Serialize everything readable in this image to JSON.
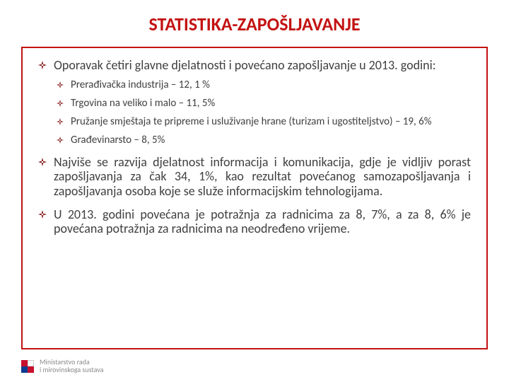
{
  "title": {
    "text": "STATISTIKA-ZAPOŠLJAVANJE",
    "color": "#c31212",
    "fontsize": 26
  },
  "border_color": "#c31212",
  "text_color_main": "#3f3f3f",
  "text_color_sub": "#3f3f3f",
  "bullet_color": "#7a0000",
  "fontsize_main": 18,
  "fontsize_sub": 15,
  "items": [
    {
      "text": "Oporavak četiri glavne djelatnosti i povećano zapošljavanje u 2013. godini:",
      "justify": false,
      "sub": [
        {
          "text": " Prerađivačka industrija – 12, 1 %"
        },
        {
          "text": "Trgovina na veliko i malo – 11, 5%"
        },
        {
          "text": "Pružanje smještaja te pripreme i usluživanje hrane (turizam i ugostiteljstvo) – 19, 6%",
          "justify": true
        },
        {
          "text": " Građevinarsto – 8, 5%"
        }
      ]
    },
    {
      "text": "Najviše se razvija djelatnost informacija i komunikacija, gdje je vidljiv porast zapošljavanja za čak 34, 1%, kao rezultat povećanog samozapošljavanja i zapošljavanja osoba koje se služe informacijskim tehnologijama.",
      "justify": true
    },
    {
      "text": "U 2013. godini povećana je potražnja za radnicima za 8, 7%, a za 8, 6% je povećana potražnja za radnicima na neodređeno vrijeme.",
      "justify": true
    }
  ],
  "footer": {
    "line1": "Ministarstvo rada",
    "line2": "i mirovinskoga sustava",
    "text_color": "#8a8a8a",
    "fontsize": 10,
    "logo_colors": [
      "#c8102e",
      "#ffffff",
      "#0a3d91",
      "#c8102e"
    ]
  }
}
